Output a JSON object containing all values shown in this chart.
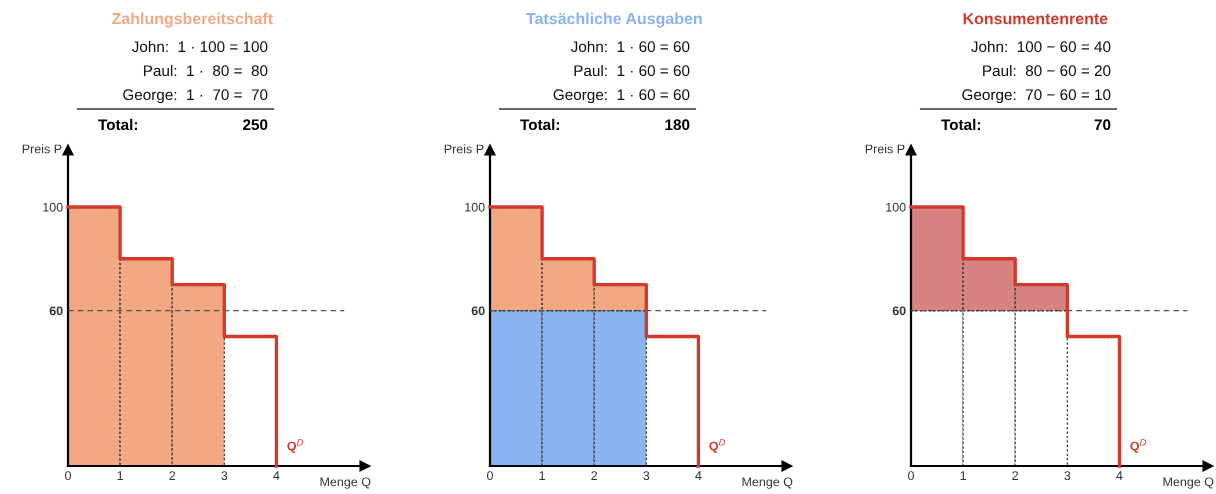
{
  "chart_data": [
    {
      "type": "bar",
      "title": "Zahlungsbereitschaft",
      "xlabel": "Menge Q",
      "ylabel": "Preis P",
      "stacked": true,
      "annotations": [
        "John:  1 · 100 = 100",
        "Paul:  1 ·  80 =  80",
        "George:  1 ·  70 =  70",
        "Total:",
        "250"
      ],
      "series": [
        {
          "color": "#f2a883",
          "x": [
            0.5,
            1.5,
            2.5
          ],
          "values": [
            100,
            80,
            70
          ]
        },
        {
          "type": "step",
          "name": "Q$^{D}$",
          "color": "#d33a2c",
          "x": [
            0,
            1,
            2,
            3,
            4
          ],
          "values": [
            100,
            80,
            70,
            50,
            0
          ]
        }
      ],
      "xlim": [
        0,
        5.7
      ],
      "xticks": [
        0,
        1,
        2,
        3,
        4
      ],
      "ylim": [
        0,
        122
      ],
      "yticks": [
        60,
        100
      ],
      "ref_lines": [
        {
          "axis": "y",
          "value": 60,
          "color": "#555555",
          "line_style": "dashed"
        }
      ],
      "grid": false
    },
    {
      "type": "bar",
      "title": "Tatsächliche Ausgaben",
      "xlabel": "Menge Q",
      "ylabel": "Preis P",
      "stacked": true,
      "annotations": [
        "John:  1 · 60 = 60",
        "Paul:  1 · 60 = 60",
        "George:  1 · 60 = 60",
        "Total:",
        "180"
      ],
      "series": [
        {
          "color": "#8ab4f0",
          "x": [
            0.5,
            1.5,
            2.5
          ],
          "values": [
            60,
            60,
            60
          ]
        },
        {
          "color": "#f2a883",
          "x": [
            0.5,
            1.5,
            2.5
          ],
          "values": [
            40,
            20,
            10
          ]
        },
        {
          "type": "step",
          "name": "Q$^{D}$",
          "color": "#d33a2c",
          "x": [
            0,
            1,
            2,
            3,
            4
          ],
          "values": [
            100,
            80,
            70,
            50,
            0
          ]
        }
      ],
      "xlim": [
        0,
        5.7
      ],
      "xticks": [
        0,
        1,
        2,
        3,
        4
      ],
      "ylim": [
        0,
        122
      ],
      "yticks": [
        60,
        100
      ],
      "ref_lines": [
        {
          "axis": "y",
          "value": 60,
          "color": "#555555",
          "line_style": "dashed"
        }
      ],
      "grid": false
    },
    {
      "type": "bar",
      "title": "Konsumentenrente",
      "xlabel": "Menge Q",
      "ylabel": "Preis P",
      "stacked": true,
      "annotations": [
        "John:  100 − 60 = 40",
        "Paul:  80 − 60 = 20",
        "George:  70 − 60 = 10",
        "Total:",
        "70"
      ],
      "series": [
        {
          "color": "#ffffff",
          "x": [
            0.5,
            1.5,
            2.5
          ],
          "values": [
            60,
            60,
            60
          ]
        },
        {
          "color": "#d98282",
          "x": [
            0.5,
            1.5,
            2.5
          ],
          "values": [
            40,
            20,
            10
          ]
        },
        {
          "type": "step",
          "name": "Q$^{D}$",
          "color": "#d33a2c",
          "x": [
            0,
            1,
            2,
            3,
            4
          ],
          "values": [
            100,
            80,
            70,
            50,
            0
          ]
        }
      ],
      "xlim": [
        0,
        5.7
      ],
      "xticks": [
        0,
        1,
        2,
        3,
        4
      ],
      "ylim": [
        0,
        122
      ],
      "yticks": [
        60,
        100
      ],
      "ref_lines": [
        {
          "axis": "y",
          "value": 60,
          "color": "#555555",
          "line_style": "dashed"
        }
      ],
      "grid": false
    }
  ]
}
